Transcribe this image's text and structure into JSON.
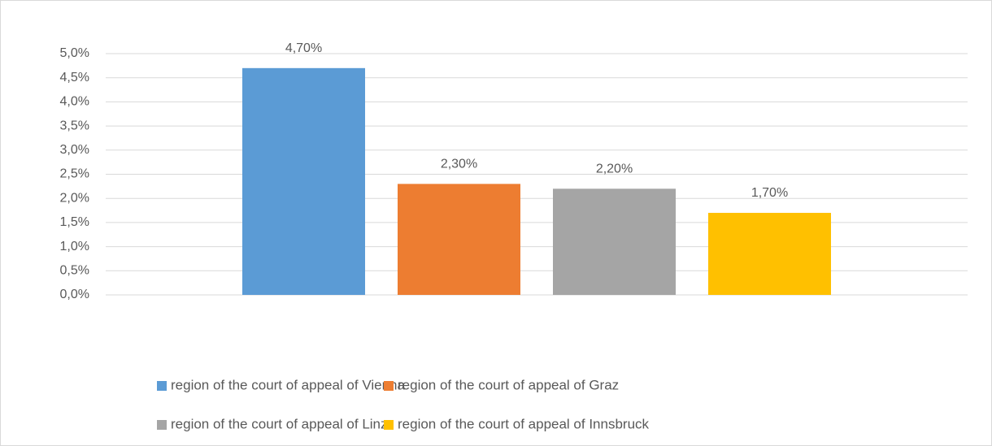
{
  "chart_data": {
    "type": "bar",
    "categories": [
      null
    ],
    "series": [
      {
        "name": "region of the court of appeal of Vienna",
        "color": "#5b9bd5",
        "values": [
          4.7
        ],
        "value_labels": [
          "4,70%"
        ]
      },
      {
        "name": "region of the court of appeal of Graz",
        "color": "#ed7d31",
        "values": [
          2.3
        ],
        "value_labels": [
          "2,30%"
        ]
      },
      {
        "name": "region of the court of appeal of Linz",
        "color": "#a5a5a5",
        "values": [
          2.2
        ],
        "value_labels": [
          "2,20%"
        ]
      },
      {
        "name": "region of the court of appeal of Innsbruck",
        "color": "#ffc000",
        "values": [
          1.7
        ],
        "value_labels": [
          "1,70%"
        ]
      }
    ],
    "ylim": [
      0,
      5
    ],
    "yticks": [
      {
        "value": 0,
        "label": "0,0%"
      },
      {
        "value": 0.5,
        "label": "0,5%"
      },
      {
        "value": 1,
        "label": "1,0%"
      },
      {
        "value": 1.5,
        "label": "1,5%"
      },
      {
        "value": 2,
        "label": "2,0%"
      },
      {
        "value": 2.5,
        "label": "2,5%"
      },
      {
        "value": 3,
        "label": "3,0%"
      },
      {
        "value": 3.5,
        "label": "3,5%"
      },
      {
        "value": 4,
        "label": "4,0%"
      },
      {
        "value": 4.5,
        "label": "4,5%"
      },
      {
        "value": 5,
        "label": "5,0%"
      }
    ],
    "grid": true,
    "legend": "bottom"
  }
}
